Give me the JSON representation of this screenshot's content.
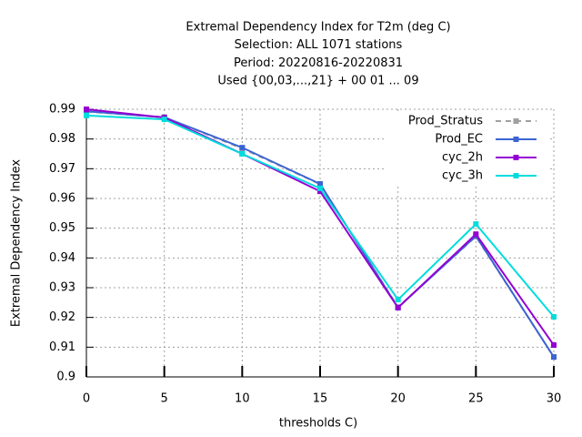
{
  "chart_data": {
    "type": "line",
    "title": [
      "Extremal Dependency Index  for T2m (deg C)",
      "Selection: ALL    1071 stations",
      "Period: 20220816-20220831",
      "Used {00,03,...,21} + 00 01 ... 09"
    ],
    "x_label": "thresholds C)",
    "y_label": "Extremal Dependency Index",
    "x": [
      0,
      5,
      10,
      15,
      20,
      25,
      30
    ],
    "xlim": [
      0,
      30
    ],
    "xticks": [
      0,
      5,
      10,
      15,
      20,
      25,
      30
    ],
    "ylim": [
      0.9,
      0.99
    ],
    "yticks": [
      0.9,
      0.91,
      0.92,
      0.93,
      0.94,
      0.95,
      0.96,
      0.97,
      0.98,
      0.99
    ],
    "grid": true,
    "legend": "upper right",
    "series": [
      {
        "name": "Prod_Stratus",
        "color": "#a0a0a0",
        "dashed": true,
        "values": [
          0.9892,
          0.9873,
          0.9768,
          0.9648,
          0.9235,
          0.9472,
          0.9067
        ]
      },
      {
        "name": "Prod_EC",
        "color": "#3c64d2",
        "values": [
          0.9893,
          0.9873,
          0.9771,
          0.9649,
          0.9233,
          0.9474,
          0.9067
        ]
      },
      {
        "name": "cyc_2h",
        "color": "#9400d3",
        "values": [
          0.99,
          0.9872,
          0.975,
          0.9624,
          0.9233,
          0.948,
          0.9107
        ]
      },
      {
        "name": "cyc_3h",
        "color": "#00dcdc",
        "values": [
          0.9879,
          0.9866,
          0.975,
          0.9634,
          0.926,
          0.9514,
          0.9202
        ]
      }
    ]
  }
}
